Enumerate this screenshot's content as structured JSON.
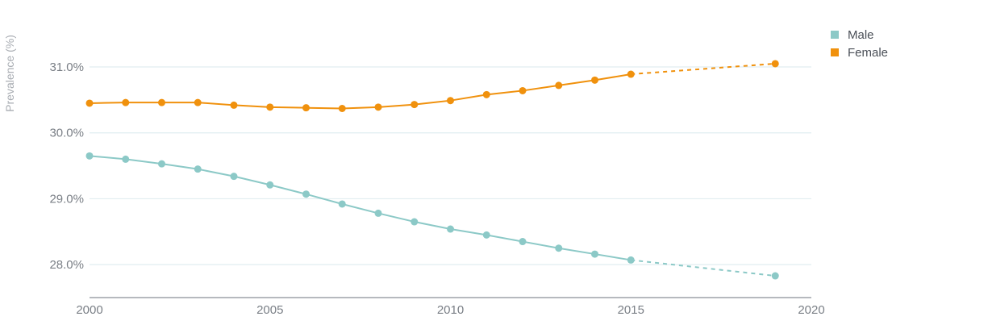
{
  "chart_data": {
    "type": "line",
    "ylabel": "Prevalence (%)",
    "xlabel": "",
    "xlim": [
      2000,
      2020
    ],
    "ylim": [
      27.5,
      31.6
    ],
    "x_ticks": [
      {
        "value": 2000,
        "label": "2000"
      },
      {
        "value": 2005,
        "label": "2005"
      },
      {
        "value": 2010,
        "label": "2010"
      },
      {
        "value": 2015,
        "label": "2015"
      },
      {
        "value": 2020,
        "label": "2020"
      }
    ],
    "y_ticks": [
      {
        "value": 28,
        "label": "28.0%"
      },
      {
        "value": 29,
        "label": "29.0%"
      },
      {
        "value": 30,
        "label": "30.0%"
      },
      {
        "value": 31,
        "label": "31.0%"
      }
    ],
    "grid": true,
    "legend_position": "top-right",
    "series": [
      {
        "name": "Male",
        "color": "#8cc9c7",
        "x": [
          2000,
          2001,
          2002,
          2003,
          2004,
          2005,
          2006,
          2007,
          2008,
          2009,
          2010,
          2011,
          2012,
          2013,
          2014,
          2015,
          2019
        ],
        "values": [
          29.65,
          29.6,
          29.53,
          29.45,
          29.34,
          29.21,
          29.07,
          28.92,
          28.78,
          28.65,
          28.54,
          28.45,
          28.35,
          28.25,
          28.16,
          28.07,
          27.83
        ],
        "projected_from": 2015
      },
      {
        "name": "Female",
        "color": "#f0910d",
        "x": [
          2000,
          2001,
          2002,
          2003,
          2004,
          2005,
          2006,
          2007,
          2008,
          2009,
          2010,
          2011,
          2012,
          2013,
          2014,
          2015,
          2019
        ],
        "values": [
          30.45,
          30.46,
          30.46,
          30.46,
          30.42,
          30.39,
          30.38,
          30.37,
          30.39,
          30.43,
          30.49,
          30.58,
          30.64,
          30.72,
          30.8,
          30.89,
          31.05
        ],
        "projected_from": 2015
      }
    ]
  }
}
